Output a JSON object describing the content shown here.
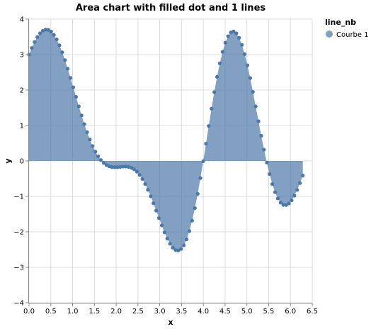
{
  "chart_data": {
    "type": "area",
    "title": "Area chart with filled dot and 1 lines",
    "xlabel": "x",
    "ylabel": "y",
    "xlim": [
      0,
      6.5
    ],
    "ylim": [
      -4,
      4
    ],
    "x_ticks": [
      "0.0",
      "0.5",
      "1.0",
      "1.5",
      "2.0",
      "2.5",
      "3.0",
      "3.5",
      "4.0",
      "4.5",
      "5.0",
      "5.5",
      "6.0",
      "6.5"
    ],
    "y_ticks": [
      "4",
      "3",
      "2",
      "1",
      "0",
      "−1",
      "−2",
      "−3",
      "−4"
    ],
    "x_tick_values": [
      0,
      0.5,
      1,
      1.5,
      2,
      2.5,
      3,
      3.5,
      4,
      4.5,
      5,
      5.5,
      6,
      6.5
    ],
    "y_tick_values": [
      4,
      3,
      2,
      1,
      0,
      -1,
      -2,
      -3,
      -4
    ],
    "grid": true,
    "legend_title": "line_nb",
    "legend_position": "top-right",
    "series": [
      {
        "name": "Courbe 1",
        "color": "#4c78a8",
        "x": [
          0,
          0.063,
          0.127,
          0.19,
          0.254,
          0.317,
          0.381,
          0.444,
          0.508,
          0.571,
          0.635,
          0.698,
          0.762,
          0.825,
          0.888,
          0.952,
          1.015,
          1.079,
          1.142,
          1.206,
          1.269,
          1.333,
          1.396,
          1.459,
          1.523,
          1.586,
          1.65,
          1.713,
          1.777,
          1.84,
          1.904,
          1.967,
          2.031,
          2.094,
          2.157,
          2.221,
          2.284,
          2.348,
          2.411,
          2.475,
          2.538,
          2.602,
          2.665,
          2.728,
          2.792,
          2.855,
          2.919,
          2.982,
          3.046,
          3.109,
          3.173,
          3.236,
          3.299,
          3.363,
          3.426,
          3.49,
          3.553,
          3.617,
          3.68,
          3.744,
          3.807,
          3.871,
          3.934,
          3.997,
          4.061,
          4.124,
          4.188,
          4.251,
          4.315,
          4.378,
          4.442,
          4.505,
          4.568,
          4.632,
          4.695,
          4.759,
          4.822,
          4.886,
          4.949,
          5.013,
          5.076,
          5.139,
          5.203,
          5.266,
          5.33,
          5.393,
          5.457,
          5.52,
          5.584,
          5.647,
          5.711,
          5.774,
          5.837,
          5.901,
          5.964,
          6.028,
          6.091,
          6.155,
          6.218,
          6.283
        ],
        "y": [
          3,
          3.188,
          3.355,
          3.495,
          3.603,
          3.674,
          3.706,
          3.698,
          3.647,
          3.556,
          3.427,
          3.262,
          3.066,
          2.844,
          2.601,
          2.343,
          2.076,
          1.807,
          1.54,
          1.282,
          1.037,
          0.81,
          0.604,
          0.421,
          0.263,
          0.131,
          0.025,
          -0.056,
          -0.114,
          -0.152,
          -0.172,
          -0.178,
          -0.175,
          -0.167,
          -0.159,
          -0.158,
          -0.167,
          -0.192,
          -0.236,
          -0.302,
          -0.393,
          -0.508,
          -0.649,
          -0.812,
          -0.995,
          -1.193,
          -1.4,
          -1.611,
          -1.818,
          -2.014,
          -2.189,
          -2.336,
          -2.446,
          -2.512,
          -2.526,
          -2.484,
          -2.379,
          -2.211,
          -1.978,
          -1.683,
          -1.331,
          -0.928,
          -0.483,
          -0.007,
          0.488,
          0.986,
          1.475,
          1.941,
          2.371,
          2.753,
          3.077,
          3.335,
          3.519,
          3.625,
          3.652,
          3.6,
          3.472,
          3.274,
          3.012,
          2.697,
          2.338,
          1.947,
          1.537,
          1.12,
          0.71,
          0.319,
          -0.044,
          -0.37,
          -0.651,
          -0.881,
          -1.056,
          -1.175,
          -1.237,
          -1.244,
          -1.2,
          -1.11,
          -0.98,
          -0.816,
          -0.624,
          -0.413
        ]
      }
    ]
  }
}
